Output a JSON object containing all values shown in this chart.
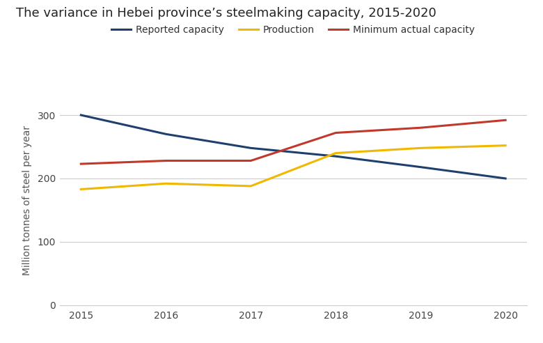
{
  "title": "The variance in Hebei province’s steelmaking capacity, 2015-2020",
  "ylabel": "Million tonnes of steel per year",
  "years": [
    2015,
    2016,
    2017,
    2018,
    2019,
    2020
  ],
  "reported_capacity": [
    300,
    270,
    248,
    235,
    218,
    200
  ],
  "production": [
    183,
    192,
    188,
    240,
    248,
    252
  ],
  "min_actual_capacity": [
    223,
    228,
    228,
    272,
    280,
    292
  ],
  "reported_capacity_color": "#1f3f6e",
  "production_color": "#f0b800",
  "min_actual_capacity_color": "#c0392b",
  "background_color": "#ffffff",
  "grid_color": "#cccccc",
  "ylim": [
    0,
    330
  ],
  "yticks": [
    0,
    100,
    200,
    300
  ],
  "legend_labels": [
    "Reported capacity",
    "Production",
    "Minimum actual capacity"
  ],
  "line_width": 2.2,
  "title_fontsize": 13,
  "axis_fontsize": 10,
  "legend_fontsize": 10,
  "tick_fontsize": 10
}
